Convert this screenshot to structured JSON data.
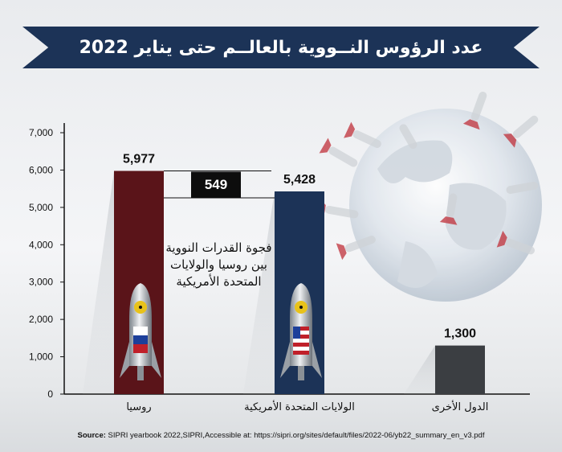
{
  "chart_data": {
    "type": "bar",
    "title": "عدد الرؤوس النــووية بالعالــم حتى يناير 2022",
    "categories": [
      "روسيا",
      "الولايات المتحدة الأمريكية",
      "الدول الأخرى"
    ],
    "values": [
      5977,
      5428,
      1300
    ],
    "value_labels": [
      "5,977",
      "5,428",
      "1,300"
    ],
    "yticks": [
      "0",
      "1,000",
      "2,000",
      "3,000",
      "4,000",
      "5,000",
      "6,000",
      "7,000"
    ],
    "ylim": [
      0,
      7000
    ],
    "xlabel": "",
    "ylabel": "",
    "grid": false,
    "bar_colors": [
      "#5a1419",
      "#1c3357",
      "#3b3e42"
    ],
    "gap_value": "549",
    "gap_text": "فجوة القدرات النووية بين روسيا والولايات المتحدة الأمريكية"
  },
  "source": {
    "label": "Source:",
    "text": "SIPRI yearbook 2022,SIPRI,Accessible at: https://sipri.org/sites/default/files/2022-06/yb22_summary_en_v3.pdf"
  }
}
